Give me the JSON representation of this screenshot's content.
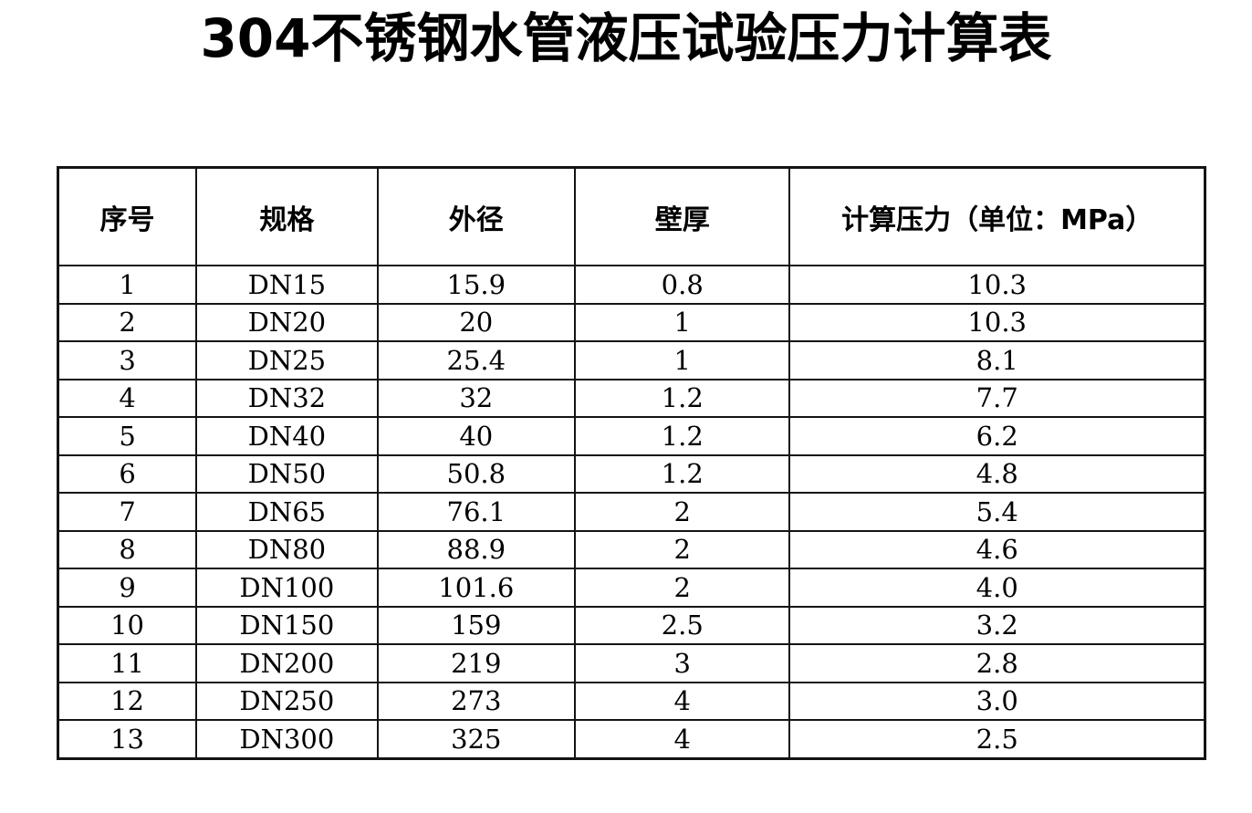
{
  "page": {
    "title": "304不锈钢水管液压试验压力计算表"
  },
  "table": {
    "headers": [
      "序号",
      "规格",
      "外径",
      "壁厚",
      "计算压力（单位：MPa）"
    ],
    "rows": [
      [
        "1",
        "DN15",
        "15.9",
        "0.8",
        "10.3"
      ],
      [
        "2",
        "DN20",
        "20",
        "1",
        "10.3"
      ],
      [
        "3",
        "DN25",
        "25.4",
        "1",
        "8.1"
      ],
      [
        "4",
        "DN32",
        "32",
        "1.2",
        "7.7"
      ],
      [
        "5",
        "DN40",
        "40",
        "1.2",
        "6.2"
      ],
      [
        "6",
        "DN50",
        "50.8",
        "1.2",
        "4.8"
      ],
      [
        "7",
        "DN65",
        "76.1",
        "2",
        "5.4"
      ],
      [
        "8",
        "DN80",
        "88.9",
        "2",
        "4.6"
      ],
      [
        "9",
        "DN100",
        "101.6",
        "2",
        "4.0"
      ],
      [
        "10",
        "DN150",
        "159",
        "2.5",
        "3.2"
      ],
      [
        "11",
        "DN200",
        "219",
        "3",
        "2.8"
      ],
      [
        "12",
        "DN250",
        "273",
        "4",
        "3.0"
      ],
      [
        "13",
        "DN300",
        "325",
        "4",
        "2.5"
      ]
    ]
  },
  "colors": {
    "background": "#ffffff",
    "border": "#141414",
    "text": "#000000"
  }
}
